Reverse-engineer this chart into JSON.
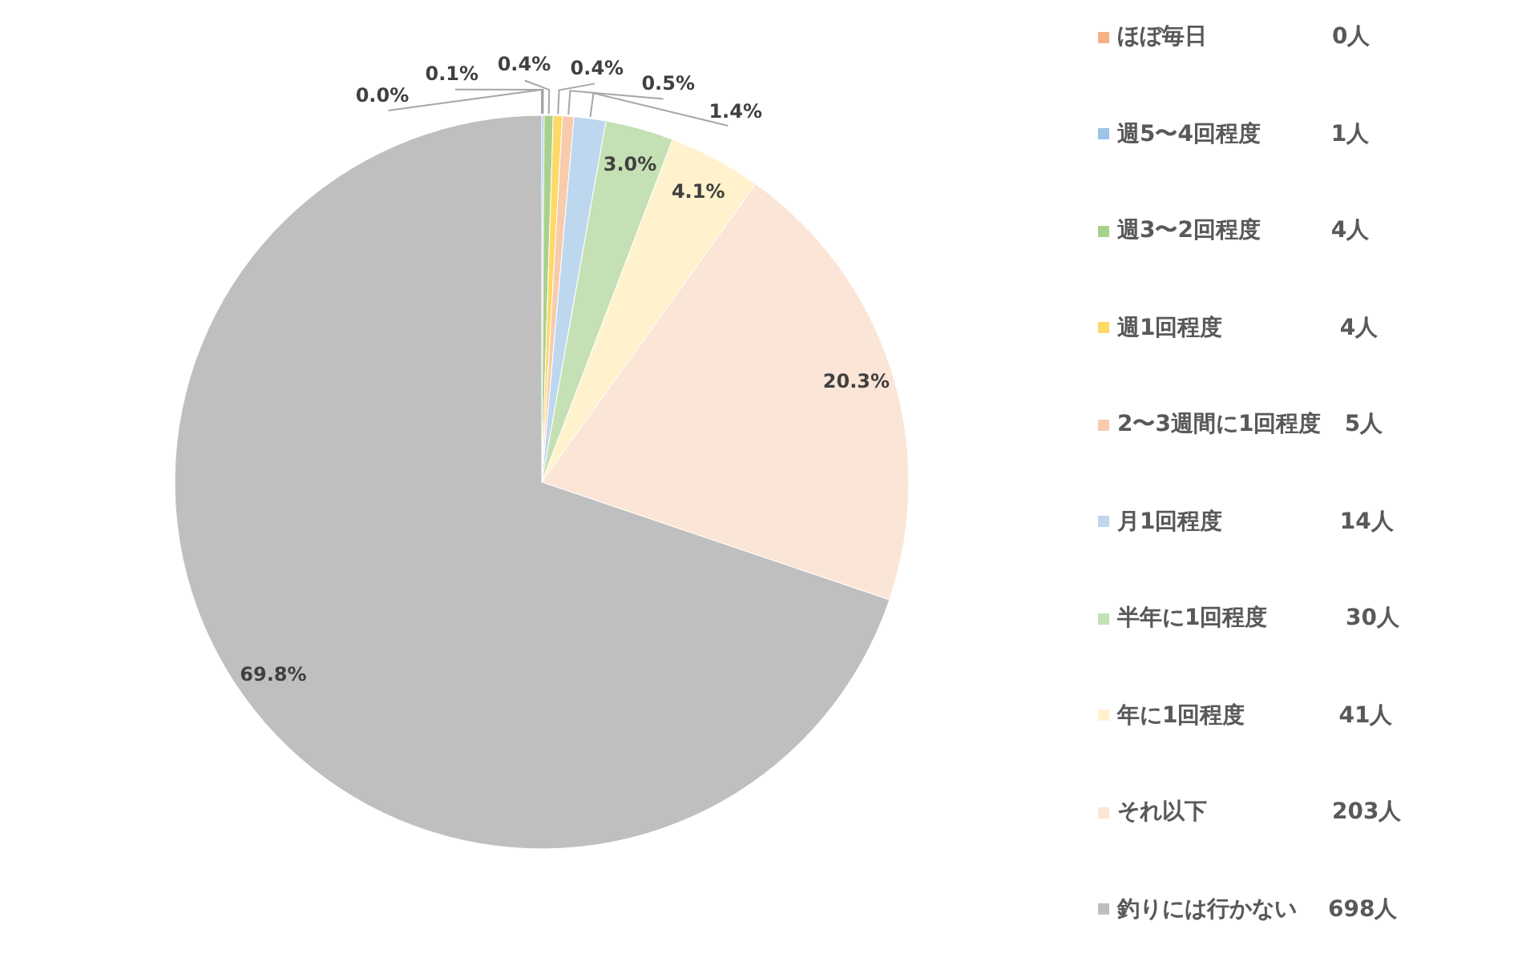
{
  "chart_data": {
    "type": "pie",
    "categories": [
      "ほぼ毎日                0人",
      "週5〜4回程度         1人",
      "週3〜2回程度         4人",
      "週1回程度               4人",
      "2〜3週間に1回程度   5人",
      "月1回程度               14人",
      "半年に1回程度          30人",
      "年に1回程度            41人",
      "それ以下                203人",
      "釣りには行かない    698人"
    ],
    "values": [
      0.0,
      0.1,
      0.4,
      0.4,
      0.5,
      1.4,
      3.0,
      4.1,
      20.3,
      69.8
    ],
    "colors": [
      "#f4b183",
      "#9dc3e6",
      "#a9d18e",
      "#ffd966",
      "#f8cbad",
      "#bdd7ee",
      "#c5e0b4",
      "#fff2cc",
      "#fbe5d6",
      "#bfbfbf"
    ],
    "value_labels": [
      "0.0%",
      "0.1%",
      "0.4%",
      "0.4%",
      "0.5%",
      "1.4%",
      "3.0%",
      "4.1%",
      "20.3%",
      "69.8%"
    ],
    "legend": "right"
  }
}
